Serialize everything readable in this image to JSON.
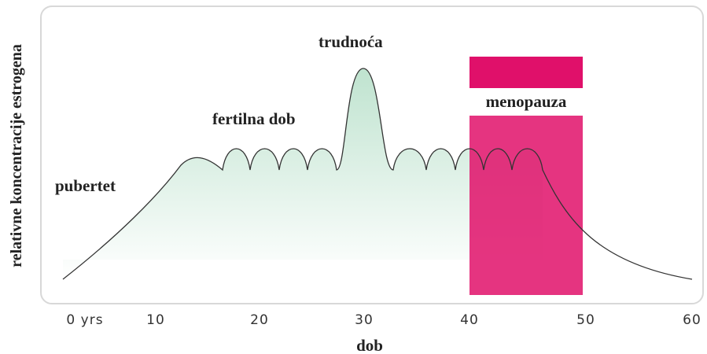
{
  "y_axis_label": "relativne koncentracije estrogena",
  "x_axis_label": "dob",
  "annotations": {
    "puberty": "pubertet",
    "fertile": "fertilna dob",
    "pregnancy": "trudnoća",
    "menopause": "menopauza"
  },
  "x_ticks": [
    "0 yrs",
    "10",
    "20",
    "30",
    "40",
    "50",
    "60"
  ]
}
